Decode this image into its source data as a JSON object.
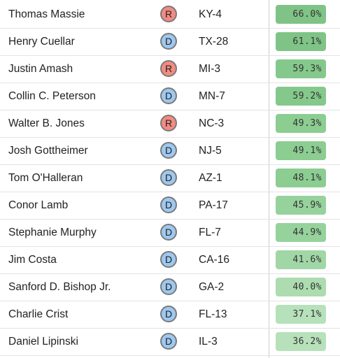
{
  "colors": {
    "republican": "#f28b82",
    "democrat": "#9ec8ef",
    "pct_scale": [
      "#7fc486",
      "#84c98b",
      "#8ccd92",
      "#96d29c",
      "#a1d7a6",
      "#acdcb0",
      "#b7e1ba"
    ]
  },
  "rows": [
    {
      "name": "Thomas Massie",
      "party": "R",
      "district": "KY-4",
      "pct": "66.0%",
      "pct_value": 66.0
    },
    {
      "name": "Henry Cuellar",
      "party": "D",
      "district": "TX-28",
      "pct": "61.1%",
      "pct_value": 61.1
    },
    {
      "name": "Justin Amash",
      "party": "R",
      "district": "MI-3",
      "pct": "59.3%",
      "pct_value": 59.3
    },
    {
      "name": "Collin C. Peterson",
      "party": "D",
      "district": "MN-7",
      "pct": "59.2%",
      "pct_value": 59.2
    },
    {
      "name": "Walter B. Jones",
      "party": "R",
      "district": "NC-3",
      "pct": "49.3%",
      "pct_value": 49.3
    },
    {
      "name": "Josh Gottheimer",
      "party": "D",
      "district": "NJ-5",
      "pct": "49.1%",
      "pct_value": 49.1
    },
    {
      "name": "Tom O'Halleran",
      "party": "D",
      "district": "AZ-1",
      "pct": "48.1%",
      "pct_value": 48.1
    },
    {
      "name": "Conor Lamb",
      "party": "D",
      "district": "PA-17",
      "pct": "45.9%",
      "pct_value": 45.9
    },
    {
      "name": "Stephanie Murphy",
      "party": "D",
      "district": "FL-7",
      "pct": "44.9%",
      "pct_value": 44.9
    },
    {
      "name": "Jim Costa",
      "party": "D",
      "district": "CA-16",
      "pct": "41.6%",
      "pct_value": 41.6
    },
    {
      "name": "Sanford D. Bishop Jr.",
      "party": "D",
      "district": "GA-2",
      "pct": "40.0%",
      "pct_value": 40.0
    },
    {
      "name": "Charlie Crist",
      "party": "D",
      "district": "FL-13",
      "pct": "37.1%",
      "pct_value": 37.1
    },
    {
      "name": "Daniel Lipinski",
      "party": "D",
      "district": "IL-3",
      "pct": "36.2%",
      "pct_value": 36.2
    }
  ]
}
